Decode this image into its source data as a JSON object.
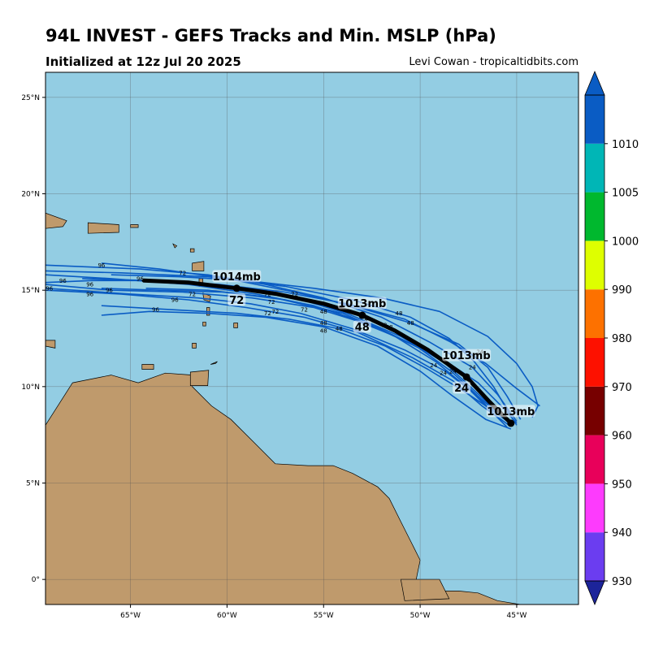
{
  "header": {
    "title": "94L INVEST - GEFS Tracks and Min. MSLP (hPa)",
    "subtitle": "Initialized at 12z Jul 20 2025",
    "credit": "Levi Cowan - tropicaltidbits.com"
  },
  "map": {
    "lon_range": [
      -69.4,
      -41.8
    ],
    "lat_range": [
      -1.3,
      26.3
    ],
    "lon_ticks": [
      {
        "value": -65,
        "label": "65°W"
      },
      {
        "value": -60,
        "label": "60°W"
      },
      {
        "value": -55,
        "label": "55°W"
      },
      {
        "value": -50,
        "label": "50°W"
      },
      {
        "value": -45,
        "label": "45°W"
      }
    ],
    "lat_ticks": [
      {
        "value": 0,
        "label": "0°"
      },
      {
        "value": 5,
        "label": "5°N"
      },
      {
        "value": 10,
        "label": "10°N"
      },
      {
        "value": 15,
        "label": "15°N"
      },
      {
        "value": 20,
        "label": "20°N"
      },
      {
        "value": 25,
        "label": "25°N"
      }
    ],
    "ocean_color": "#93cde3",
    "land_color": "#bf9a6c",
    "member_color": "#0a5cc4",
    "mean_color": "#000000"
  },
  "mean_track": {
    "points": [
      [
        -45.3,
        8.1
      ],
      [
        -46.4,
        9.2
      ],
      [
        -47.6,
        10.5
      ],
      [
        -48.6,
        11.2
      ],
      [
        -49.6,
        11.9
      ],
      [
        -51.3,
        12.9
      ],
      [
        -53.0,
        13.7
      ],
      [
        -55.0,
        14.3
      ],
      [
        -57.4,
        14.8
      ],
      [
        -59.5,
        15.1
      ],
      [
        -62.0,
        15.4
      ],
      [
        -64.3,
        15.5
      ]
    ],
    "labels": [
      {
        "lon": -45.3,
        "lat": 8.1,
        "text": "1013mb",
        "dx": 0,
        "dy": -14
      },
      {
        "lon": -47.6,
        "lat": 11.0,
        "text": "1013mb",
        "dx": 0,
        "dy": -14
      },
      {
        "lon": -47.6,
        "lat": 10.5,
        "text": "24",
        "dx": -6,
        "dy": 14
      },
      {
        "lon": -53.0,
        "lat": 13.7,
        "text": "1013mb",
        "dx": 0,
        "dy": -14
      },
      {
        "lon": -53.0,
        "lat": 13.7,
        "text": "48",
        "dx": 0,
        "dy": 15
      },
      {
        "lon": -59.5,
        "lat": 15.1,
        "text": "1014mb",
        "dx": 0,
        "dy": -14
      },
      {
        "lon": -59.5,
        "lat": 15.1,
        "text": "72",
        "dx": 0,
        "dy": 15
      }
    ]
  },
  "members": [
    [
      [
        -45.2,
        8.0
      ],
      [
        -46.5,
        9.4
      ],
      [
        -48.0,
        10.8
      ],
      [
        -50.0,
        12.0
      ],
      [
        -52.5,
        13.2
      ],
      [
        -55.5,
        14.2
      ],
      [
        -58.5,
        14.8
      ],
      [
        -62.0,
        15.3
      ],
      [
        -66.0,
        15.6
      ],
      [
        -69.4,
        15.8
      ]
    ],
    [
      [
        -45.0,
        8.2
      ],
      [
        -46.0,
        9.6
      ],
      [
        -47.3,
        11.0
      ],
      [
        -49.5,
        12.3
      ],
      [
        -52.0,
        13.6
      ],
      [
        -55.0,
        14.6
      ],
      [
        -58.0,
        15.3
      ],
      [
        -61.0,
        15.8
      ],
      [
        -64.5,
        16.1
      ],
      [
        -69.4,
        16.3
      ]
    ],
    [
      [
        -45.4,
        8.0
      ],
      [
        -46.8,
        9.0
      ],
      [
        -48.3,
        10.3
      ],
      [
        -50.4,
        11.5
      ],
      [
        -53.2,
        12.8
      ],
      [
        -56.0,
        13.6
      ],
      [
        -59.0,
        14.1
      ],
      [
        -62.0,
        14.5
      ],
      [
        -65.5,
        14.8
      ],
      [
        -69.4,
        15.0
      ]
    ],
    [
      [
        -45.6,
        8.3
      ],
      [
        -47.2,
        9.8
      ],
      [
        -48.8,
        11.3
      ],
      [
        -51.0,
        12.6
      ],
      [
        -53.8,
        13.8
      ],
      [
        -56.8,
        14.7
      ],
      [
        -60.0,
        15.2
      ],
      [
        -63.5,
        15.5
      ],
      [
        -67.0,
        15.5
      ],
      [
        -69.4,
        15.4
      ]
    ],
    [
      [
        -45.0,
        8.1
      ],
      [
        -45.8,
        9.0
      ],
      [
        -47.0,
        10.2
      ],
      [
        -48.8,
        11.4
      ],
      [
        -51.5,
        12.7
      ],
      [
        -54.5,
        13.9
      ],
      [
        -57.5,
        14.6
      ],
      [
        -61.0,
        15.0
      ],
      [
        -64.2,
        15.1
      ]
    ],
    [
      [
        -44.8,
        8.3
      ],
      [
        -45.5,
        9.5
      ],
      [
        -46.5,
        11.0
      ],
      [
        -48.0,
        12.2
      ],
      [
        -50.5,
        13.3
      ],
      [
        -53.5,
        14.2
      ],
      [
        -56.5,
        14.9
      ],
      [
        -60.0,
        15.6
      ],
      [
        -63.5,
        16.1
      ],
      [
        -66.5,
        16.4
      ]
    ],
    [
      [
        -45.2,
        8.0
      ],
      [
        -46.3,
        8.8
      ],
      [
        -47.8,
        9.8
      ],
      [
        -49.6,
        10.9
      ],
      [
        -51.8,
        12.1
      ],
      [
        -54.2,
        13.0
      ],
      [
        -56.8,
        13.5
      ],
      [
        -59.5,
        13.8
      ],
      [
        -63.0,
        14.0
      ],
      [
        -66.5,
        14.2
      ]
    ],
    [
      [
        -45.5,
        8.2
      ],
      [
        -47.0,
        9.5
      ],
      [
        -48.7,
        10.8
      ],
      [
        -50.8,
        11.9
      ],
      [
        -53.5,
        13.0
      ],
      [
        -56.2,
        13.8
      ],
      [
        -58.8,
        14.3
      ],
      [
        -61.5,
        14.6
      ],
      [
        -65.0,
        14.8
      ],
      [
        -69.4,
        15.1
      ]
    ],
    [
      [
        -45.0,
        8.0
      ],
      [
        -45.5,
        8.8
      ],
      [
        -46.2,
        10.0
      ],
      [
        -47.2,
        11.3
      ],
      [
        -48.5,
        12.5
      ],
      [
        -50.5,
        13.6
      ],
      [
        -53.5,
        14.5
      ],
      [
        -57.0,
        15.2
      ],
      [
        -61.0,
        15.7
      ],
      [
        -65.5,
        15.9
      ],
      [
        -69.4,
        16.0
      ]
    ],
    [
      [
        -44.2,
        8.4
      ],
      [
        -43.9,
        9.0
      ],
      [
        -44.2,
        10.0
      ],
      [
        -45.0,
        11.2
      ],
      [
        -46.5,
        12.6
      ],
      [
        -49.0,
        13.9
      ],
      [
        -52.0,
        14.6
      ],
      [
        -55.5,
        15.1
      ],
      [
        -59.0,
        15.5
      ],
      [
        -62.5,
        15.7
      ],
      [
        -66.0,
        15.8
      ]
    ],
    [
      [
        -45.3,
        7.8
      ],
      [
        -46.6,
        8.3
      ],
      [
        -48.3,
        9.5
      ],
      [
        -50.0,
        10.8
      ],
      [
        -52.2,
        12.1
      ],
      [
        -55.0,
        13.1
      ],
      [
        -58.0,
        13.6
      ],
      [
        -61.0,
        13.8
      ],
      [
        -64.0,
        13.9
      ],
      [
        -66.5,
        13.7
      ]
    ],
    [
      [
        -43.8,
        9.0
      ],
      [
        -45.0,
        9.9
      ],
      [
        -46.6,
        11.2
      ],
      [
        -48.4,
        12.3
      ],
      [
        -50.8,
        13.5
      ],
      [
        -53.8,
        14.3
      ],
      [
        -57.0,
        14.9
      ],
      [
        -60.4,
        15.3
      ],
      [
        -64.0,
        15.5
      ],
      [
        -67.5,
        15.6
      ]
    ],
    [
      [
        -45.5,
        7.9
      ],
      [
        -46.2,
        8.6
      ],
      [
        -47.1,
        9.6
      ],
      [
        -48.4,
        10.8
      ],
      [
        -50.2,
        12.1
      ],
      [
        -52.6,
        13.2
      ],
      [
        -55.5,
        14.1
      ],
      [
        -58.7,
        14.6
      ],
      [
        -62.3,
        14.9
      ],
      [
        -66.0,
        15.0
      ],
      [
        -69.4,
        15.3
      ]
    ],
    [
      [
        -46.0,
        8.4
      ],
      [
        -47.5,
        9.9
      ],
      [
        -49.2,
        11.3
      ],
      [
        -51.3,
        12.6
      ],
      [
        -54.0,
        13.8
      ],
      [
        -57.0,
        14.5
      ],
      [
        -60.2,
        14.9
      ],
      [
        -63.5,
        15.0
      ],
      [
        -66.5,
        15.1
      ]
    ]
  ],
  "member_labels": [
    {
      "lon": -66.5,
      "lat": 16.3,
      "text": "96"
    },
    {
      "lon": -68.5,
      "lat": 15.5,
      "text": "96"
    },
    {
      "lon": -67.1,
      "lat": 15.3,
      "text": "96"
    },
    {
      "lon": -66.1,
      "lat": 15.0,
      "text": "96"
    },
    {
      "lon": -67.1,
      "lat": 14.8,
      "text": "96"
    },
    {
      "lon": -64.5,
      "lat": 15.6,
      "text": "96"
    },
    {
      "lon": -63.7,
      "lat": 14.0,
      "text": "96"
    },
    {
      "lon": -62.7,
      "lat": 14.5,
      "text": "96"
    },
    {
      "lon": -69.2,
      "lat": 15.1,
      "text": "96"
    },
    {
      "lon": -62.3,
      "lat": 15.9,
      "text": "72"
    },
    {
      "lon": -61.8,
      "lat": 14.8,
      "text": "72"
    },
    {
      "lon": -56.5,
      "lat": 14.8,
      "text": "72"
    },
    {
      "lon": -57.9,
      "lat": 14.8,
      "text": "72"
    },
    {
      "lon": -57.7,
      "lat": 14.4,
      "text": "72"
    },
    {
      "lon": -57.5,
      "lat": 13.9,
      "text": "72"
    },
    {
      "lon": -56.0,
      "lat": 14.0,
      "text": "72"
    },
    {
      "lon": -57.9,
      "lat": 13.8,
      "text": "72"
    },
    {
      "lon": -55.0,
      "lat": 13.9,
      "text": "48"
    },
    {
      "lon": -55.0,
      "lat": 13.3,
      "text": "48"
    },
    {
      "lon": -55.0,
      "lat": 12.9,
      "text": "48"
    },
    {
      "lon": -54.2,
      "lat": 13.0,
      "text": "48"
    },
    {
      "lon": -51.1,
      "lat": 13.8,
      "text": "48"
    },
    {
      "lon": -52.7,
      "lat": 13.5,
      "text": "48"
    },
    {
      "lon": -51.6,
      "lat": 13.1,
      "text": "48"
    },
    {
      "lon": -50.5,
      "lat": 13.3,
      "text": "48"
    },
    {
      "lon": -51.9,
      "lat": 13.2,
      "text": "48"
    },
    {
      "lon": -49.3,
      "lat": 11.1,
      "text": "24"
    },
    {
      "lon": -48.8,
      "lat": 10.7,
      "text": "24"
    },
    {
      "lon": -46.9,
      "lat": 11.8,
      "text": "24"
    },
    {
      "lon": -47.3,
      "lat": 11.0,
      "text": "24"
    },
    {
      "lon": -48.3,
      "lat": 10.8,
      "text": "24"
    }
  ],
  "colorbar": {
    "levels": [
      {
        "value": "930",
        "color": "#6b3df0"
      },
      {
        "value": "940",
        "color": "#fd3bfd"
      },
      {
        "value": "950",
        "color": "#e8005a"
      },
      {
        "value": "960",
        "color": "#770000"
      },
      {
        "value": "970",
        "color": "#fd1100"
      },
      {
        "value": "980",
        "color": "#fd7100"
      },
      {
        "value": "990",
        "color": "#deff00"
      },
      {
        "value": "1000",
        "color": "#00b82e"
      },
      {
        "value": "1005",
        "color": "#00b6b6"
      },
      {
        "value": "1010",
        "color": "#0a5cc4"
      }
    ],
    "under_color": "#1c249a",
    "over_color": "#0a5cc4"
  }
}
